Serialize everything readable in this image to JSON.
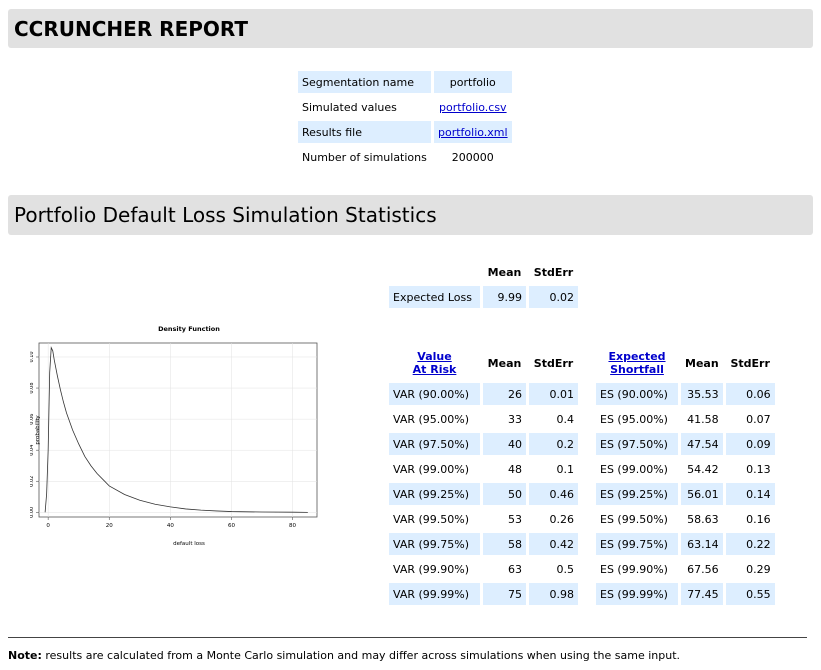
{
  "title": "CCRUNCHER REPORT",
  "summary": {
    "rows": [
      {
        "label": "Segmentation name",
        "value": "portfolio",
        "link": false
      },
      {
        "label": "Simulated values",
        "value": "portfolio.csv",
        "link": true
      },
      {
        "label": "Results file",
        "value": "portfolio.xml",
        "link": true
      },
      {
        "label": "Number of simulations",
        "value": "200000",
        "link": false
      }
    ]
  },
  "section_title": "Portfolio Default Loss Simulation Statistics",
  "expected_loss": {
    "headers": {
      "mean": "Mean",
      "stderr": "StdErr"
    },
    "label": "Expected Loss",
    "mean": "9.99",
    "stderr": "0.02"
  },
  "risk_table": {
    "var_header": {
      "line1": "Value",
      "line2": "At Risk"
    },
    "es_header": {
      "line1": "Expected",
      "line2": "Shortfall"
    },
    "mean_header": "Mean",
    "stderr_header": "StdErr",
    "rows": [
      {
        "var_label": "VAR (90.00%)",
        "var_mean": "26",
        "var_stderr": "0.01",
        "es_label": "ES (90.00%)",
        "es_mean": "35.53",
        "es_stderr": "0.06"
      },
      {
        "var_label": "VAR (95.00%)",
        "var_mean": "33",
        "var_stderr": "0.4",
        "es_label": "ES (95.00%)",
        "es_mean": "41.58",
        "es_stderr": "0.07"
      },
      {
        "var_label": "VAR (97.50%)",
        "var_mean": "40",
        "var_stderr": "0.2",
        "es_label": "ES (97.50%)",
        "es_mean": "47.54",
        "es_stderr": "0.09"
      },
      {
        "var_label": "VAR (99.00%)",
        "var_mean": "48",
        "var_stderr": "0.1",
        "es_label": "ES (99.00%)",
        "es_mean": "54.42",
        "es_stderr": "0.13"
      },
      {
        "var_label": "VAR (99.25%)",
        "var_mean": "50",
        "var_stderr": "0.46",
        "es_label": "ES (99.25%)",
        "es_mean": "56.01",
        "es_stderr": "0.14"
      },
      {
        "var_label": "VAR (99.50%)",
        "var_mean": "53",
        "var_stderr": "0.26",
        "es_label": "ES (99.50%)",
        "es_mean": "58.63",
        "es_stderr": "0.16"
      },
      {
        "var_label": "VAR (99.75%)",
        "var_mean": "58",
        "var_stderr": "0.42",
        "es_label": "ES (99.75%)",
        "es_mean": "63.14",
        "es_stderr": "0.22"
      },
      {
        "var_label": "VAR (99.90%)",
        "var_mean": "63",
        "var_stderr": "0.5",
        "es_label": "ES (99.90%)",
        "es_mean": "67.56",
        "es_stderr": "0.29"
      },
      {
        "var_label": "VAR (99.99%)",
        "var_mean": "75",
        "var_stderr": "0.98",
        "es_label": "ES (99.99%)",
        "es_mean": "77.45",
        "es_stderr": "0.55"
      }
    ]
  },
  "chart_data": {
    "type": "line",
    "title": "Density Function",
    "xlabel": "default loss",
    "ylabel": "probability",
    "xlim": [
      -3,
      88
    ],
    "ylim": [
      -0.003,
      0.109
    ],
    "xticks": [
      0,
      20,
      40,
      60,
      80
    ],
    "yticks": [
      0.0,
      0.02,
      0.04,
      0.06,
      0.08,
      0.1
    ],
    "ytick_labels": [
      "0.00",
      "0.02",
      "0.04",
      "0.06",
      "0.08",
      "0.10"
    ],
    "grid": true,
    "x": [
      -1,
      -0.5,
      0,
      0.5,
      1,
      1.5,
      2,
      3,
      4,
      5,
      6,
      8,
      10,
      12,
      14,
      16,
      18,
      20,
      25,
      30,
      35,
      40,
      45,
      50,
      55,
      60,
      70,
      80,
      85
    ],
    "y": [
      0.0,
      0.012,
      0.04,
      0.09,
      0.106,
      0.104,
      0.098,
      0.088,
      0.079,
      0.071,
      0.064,
      0.053,
      0.044,
      0.036,
      0.03,
      0.025,
      0.021,
      0.017,
      0.0115,
      0.0078,
      0.0052,
      0.0035,
      0.0022,
      0.0014,
      0.0009,
      0.0005,
      0.0002,
      0.0001,
      0.0
    ]
  },
  "note": {
    "label": "Note:",
    "text": " results are calculated from a Monte Carlo simulation and may differ across simulations when using the same input."
  }
}
